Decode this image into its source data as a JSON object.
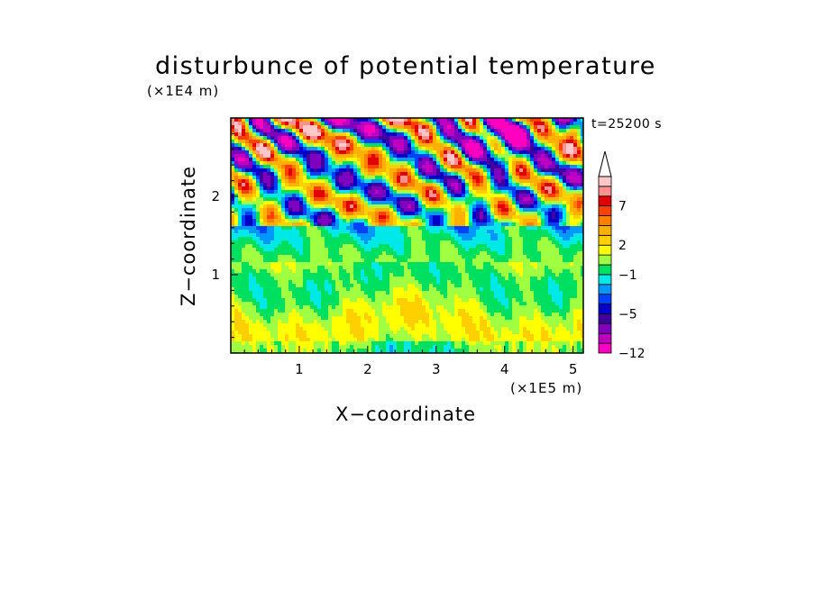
{
  "chart_data": {
    "type": "heatmap",
    "title": "disturbunce of potential temperature",
    "xlabel": "X−coordinate",
    "ylabel": "Z−coordinate",
    "x_unit": "(×1E5 m)",
    "y_unit": "(×1E4 m)",
    "annotation": "t=25200 s",
    "xlim": [
      0,
      5.15
    ],
    "ylim": [
      0,
      3.0
    ],
    "x_ticks": [
      1,
      2,
      3,
      4,
      5
    ],
    "y_ticks": [
      1,
      2
    ],
    "colorbar": {
      "levels": [
        -12,
        -10,
        -8,
        -6,
        -5,
        -4,
        -3,
        -2,
        -1,
        0,
        1,
        2,
        3,
        5,
        6,
        7,
        8,
        9
      ],
      "tick_labels": [
        "−12",
        "−5",
        "−1",
        "2",
        "7"
      ],
      "tick_values": [
        -12,
        -5,
        -1,
        2,
        7
      ],
      "colors": [
        "#ff00c0",
        "#c000c0",
        "#8000c0",
        "#4000a0",
        "#0000c8",
        "#0040ff",
        "#0098ff",
        "#00e8e8",
        "#00e060",
        "#a0ff40",
        "#ffff00",
        "#ffd000",
        "#ffb000",
        "#ff8000",
        "#ff4000",
        "#e00000",
        "#ff9090",
        "#ffc8c8"
      ],
      "extend": "max"
    },
    "field_description": "layered wave pattern: near zero below 1.2E4 m, large positive and negative disturbances above"
  }
}
